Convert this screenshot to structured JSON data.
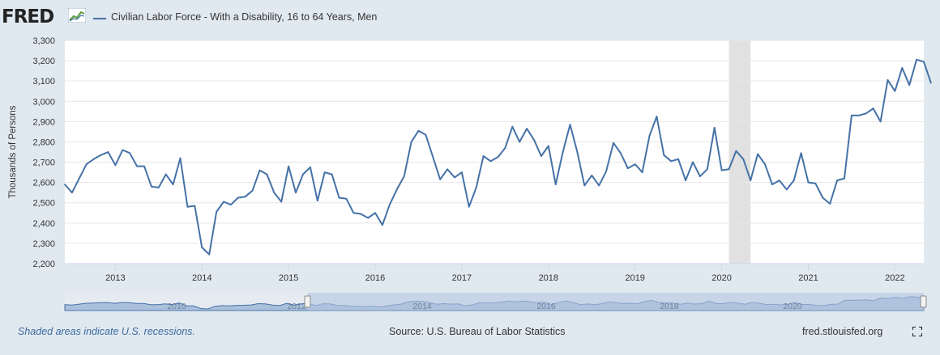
{
  "header": {
    "logo_text": "FRED",
    "legend_label": "Civilian Labor Force - With a Disability, 16 to 64 Years, Men",
    "series_color": "#4572a7"
  },
  "footer": {
    "note": "Shaded areas indicate U.S. recessions.",
    "source": "Source: U.S. Bureau of Labor Statistics",
    "site": "fred.stlouisfed.org",
    "fullscreen_icon": "fullscreen-icon"
  },
  "navigator": {
    "labels": [
      "2010",
      "2012",
      "2014",
      "2016",
      "2018",
      "2020"
    ]
  },
  "chart_data": {
    "type": "line",
    "title": "",
    "xlabel": "",
    "ylabel": "Thousands of Persons",
    "ylim": [
      2200,
      3300
    ],
    "yticks": [
      2200,
      2300,
      2400,
      2500,
      2600,
      2700,
      2800,
      2900,
      3000,
      3100,
      3200,
      3300
    ],
    "xtick_labels": [
      "2013",
      "2014",
      "2015",
      "2016",
      "2017",
      "2018",
      "2019",
      "2020",
      "2021",
      "2022"
    ],
    "x_start": "2012-06",
    "x_end": "2022-05",
    "recession": {
      "start": "2020-02",
      "end": "2020-04"
    },
    "grid": true,
    "series": [
      {
        "name": "Civilian Labor Force - With a Disability, 16 to 64 Years, Men",
        "values": [
          2590,
          2550,
          2620,
          2690,
          2715,
          2735,
          2750,
          2685,
          2760,
          2745,
          2680,
          2680,
          2580,
          2575,
          2640,
          2590,
          2720,
          2480,
          2485,
          2280,
          2245,
          2455,
          2505,
          2490,
          2525,
          2530,
          2560,
          2660,
          2640,
          2550,
          2505,
          2680,
          2550,
          2640,
          2675,
          2510,
          2650,
          2640,
          2525,
          2520,
          2450,
          2445,
          2425,
          2450,
          2390,
          2490,
          2565,
          2630,
          2800,
          2855,
          2835,
          2725,
          2615,
          2665,
          2625,
          2650,
          2480,
          2575,
          2730,
          2705,
          2725,
          2770,
          2875,
          2800,
          2865,
          2810,
          2730,
          2780,
          2590,
          2750,
          2885,
          2750,
          2585,
          2635,
          2585,
          2655,
          2795,
          2745,
          2670,
          2690,
          2650,
          2830,
          2925,
          2735,
          2705,
          2715,
          2610,
          2700,
          2630,
          2665,
          2870,
          2660,
          2665,
          2755,
          2715,
          2610,
          2740,
          2690,
          2590,
          2610,
          2565,
          2610,
          2745,
          2600,
          2595,
          2525,
          2495,
          2610,
          2620,
          2930,
          2930,
          2940,
          2965,
          2900,
          3105,
          3050,
          3165,
          3080,
          3205,
          3195,
          3090
        ]
      }
    ]
  }
}
